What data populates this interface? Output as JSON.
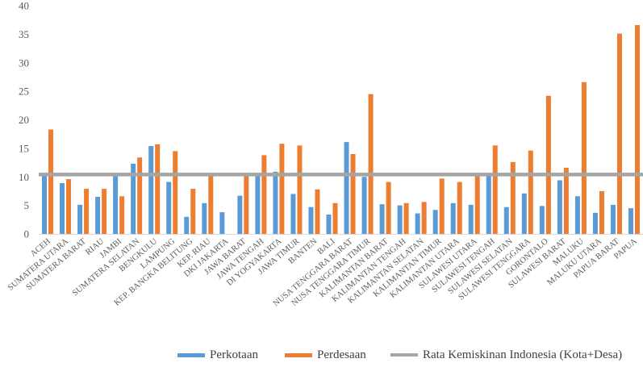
{
  "chart_data": {
    "type": "bar",
    "ylim": [
      0,
      40
    ],
    "yticks": [
      0,
      5,
      10,
      15,
      20,
      25,
      30,
      35,
      40
    ],
    "grid": false,
    "legend_placement": "bottom",
    "categories": [
      "ACEH",
      "SUMATERA UTARA",
      "SUMATERA BARAT",
      "RIAU",
      "JAMBI",
      "SUMATERA SELATAN",
      "BENGKULU",
      "LAMPUNG",
      "KEP. BANGKA BELITUNG",
      "KEP. RIAU",
      "DKI JAKARTA",
      "JAWA BARAT",
      "JAWA TENGAH",
      "DI YOGYAKARTA",
      "JAWA TIMUR",
      "BANTEN",
      "BALI",
      "NUSA TENGGARA BARAT",
      "NUSA TENGGARA TIMUR",
      "KALIMANTAN BARAT",
      "KALIMANTAN TENGAH",
      "KALIMANTAN SELATAN",
      "KALIMANTAN TIMUR",
      "KALIMANTAN UTARA",
      "SULAWESI UTARA",
      "SULAWESI TENGAH",
      "SULAWESI SELATAN",
      "SULAWESI TENGGARA",
      "GORONTALO",
      "SULAWESI BARAT",
      "MALUKU",
      "MALUKU UTARA",
      "PAPUA BARAT",
      "PAPUA"
    ],
    "series": [
      {
        "name": "Perkotaan",
        "color": "#5B9BD5",
        "values": [
          10.4,
          8.9,
          5.1,
          6.5,
          10.1,
          12.3,
          15.4,
          9.1,
          3.0,
          5.4,
          3.8,
          6.7,
          10.3,
          10.9,
          7.0,
          4.7,
          3.4,
          16.1,
          10.0,
          5.2,
          5.0,
          3.6,
          4.2,
          5.4,
          5.1,
          10.4,
          4.7,
          7.1,
          4.9,
          9.4,
          6.6,
          3.7,
          5.1,
          4.5
        ]
      },
      {
        "name": "Perdesaan",
        "color": "#ED7D31",
        "values": [
          18.3,
          9.6,
          7.9,
          7.9,
          6.6,
          13.4,
          15.7,
          14.5,
          7.9,
          10.2,
          0,
          10.4,
          13.8,
          15.8,
          15.5,
          7.8,
          5.4,
          14.0,
          24.5,
          9.1,
          5.4,
          5.6,
          9.7,
          9.1,
          10.1,
          15.5,
          12.6,
          14.6,
          24.2,
          11.6,
          26.6,
          7.5,
          35.1,
          36.6
        ]
      },
      {
        "name": "Rata Kemiskinan Indonesia (Kota+Desa)",
        "color": "#A5A5A5",
        "type": "line",
        "value": 10.4
      }
    ]
  }
}
